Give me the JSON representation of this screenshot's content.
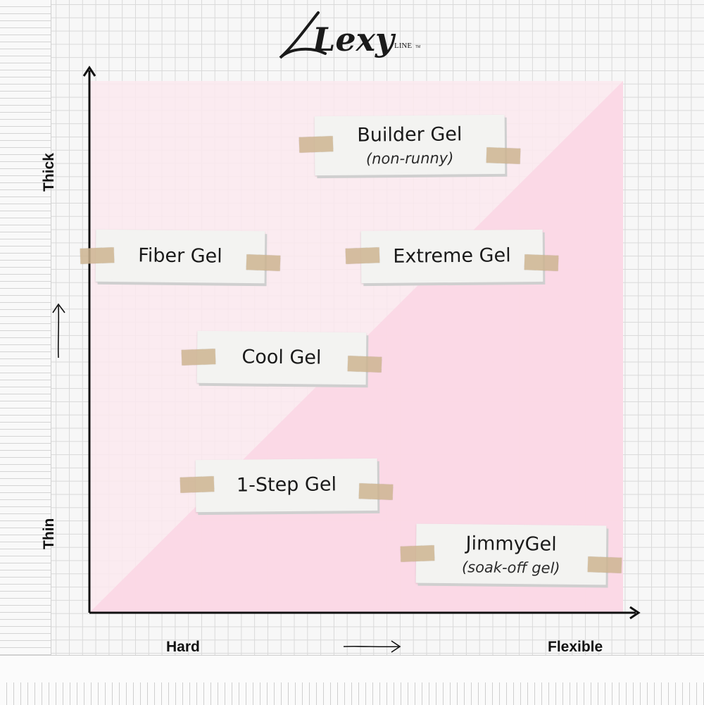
{
  "brand": {
    "logo_text": "Lexy",
    "logo_suffix": "LINE",
    "trademark": "TM"
  },
  "colors": {
    "background": "#f7f7f7",
    "grid": "#d9d9d9",
    "region_light": "#fbe9ef",
    "region_pink": "#fbd7e4",
    "axis": "#111111",
    "card": "#f3f3f1",
    "tape": "#cdb491"
  },
  "chart_data": {
    "type": "scatter",
    "title": "",
    "xlabel": "Hard → Flexible",
    "ylabel": "Thin → Thick",
    "x_axis": {
      "min_label": "Hard",
      "max_label": "Flexible"
    },
    "y_axis": {
      "min_label": "Thin",
      "max_label": "Thick"
    },
    "xlim": [
      0,
      100
    ],
    "ylim": [
      0,
      100
    ],
    "points": [
      {
        "label": "Builder Gel",
        "note": "(non-runny)",
        "x": 60,
        "y": 88
      },
      {
        "label": "Fiber Gel",
        "note": "",
        "x": 17,
        "y": 67
      },
      {
        "label": "Extreme Gel",
        "note": "",
        "x": 68,
        "y": 67
      },
      {
        "label": "Cool Gel",
        "note": "",
        "x": 36,
        "y": 48
      },
      {
        "label": "1-Step Gel",
        "note": "",
        "x": 37,
        "y": 24
      },
      {
        "label": "JimmyGel",
        "note": "(soak-off gel)",
        "x": 79,
        "y": 11
      }
    ]
  }
}
